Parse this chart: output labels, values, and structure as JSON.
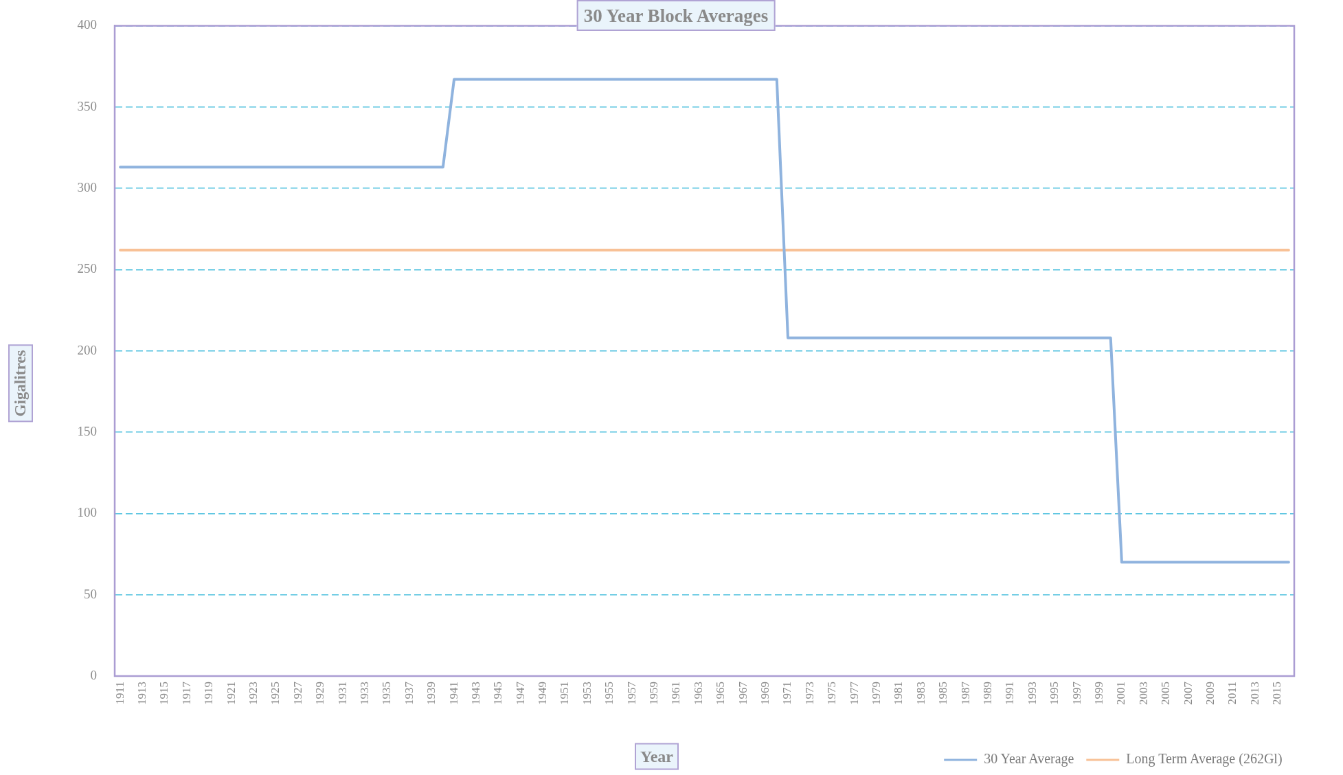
{
  "chart_data": {
    "type": "line",
    "title": "30 Year Block Averages",
    "xlabel": "Year",
    "ylabel": "Gigalitres",
    "categories": [
      "1911",
      null,
      "1913",
      null,
      "1915",
      null,
      "1917",
      null,
      "1919",
      null,
      "1921",
      null,
      "1923",
      null,
      "1925",
      null,
      "1927",
      null,
      "1929",
      null,
      "1931",
      null,
      "1933",
      null,
      "1935",
      null,
      "1937",
      null,
      "1939",
      null,
      "1941",
      null,
      "1943",
      null,
      "1945",
      null,
      "1947",
      null,
      "1949",
      null,
      "1951",
      null,
      "1953",
      null,
      "1955",
      null,
      "1957",
      null,
      "1959",
      null,
      "1961",
      null,
      "1963",
      null,
      "1965",
      null,
      "1967",
      null,
      "1969",
      null,
      "1971",
      null,
      "1973",
      null,
      "1975",
      null,
      "1977",
      null,
      "1979",
      null,
      "1981",
      null,
      "1983",
      null,
      "1985",
      null,
      "1987",
      null,
      "1989",
      null,
      "1991",
      null,
      "1993",
      null,
      "1995",
      null,
      "1997",
      null,
      "1999",
      null,
      "2001",
      null,
      "2003",
      null,
      "2005",
      null,
      "2007",
      null,
      "2009",
      null,
      "2011",
      null,
      "2013",
      null,
      "2015",
      null
    ],
    "series": [
      {
        "name": "30 Year Average",
        "color": "#8fb3de",
        "values": [
          313,
          313,
          313,
          313,
          313,
          313,
          313,
          313,
          313,
          313,
          313,
          313,
          313,
          313,
          313,
          313,
          313,
          313,
          313,
          313,
          313,
          313,
          313,
          313,
          313,
          313,
          313,
          313,
          313,
          313,
          367,
          367,
          367,
          367,
          367,
          367,
          367,
          367,
          367,
          367,
          367,
          367,
          367,
          367,
          367,
          367,
          367,
          367,
          367,
          367,
          367,
          367,
          367,
          367,
          367,
          367,
          367,
          367,
          367,
          367,
          208,
          208,
          208,
          208,
          208,
          208,
          208,
          208,
          208,
          208,
          208,
          208,
          208,
          208,
          208,
          208,
          208,
          208,
          208,
          208,
          208,
          208,
          208,
          208,
          208,
          208,
          208,
          208,
          208,
          208,
          70,
          70,
          70,
          70,
          70,
          70,
          70,
          70,
          70,
          70,
          70,
          70,
          70,
          70,
          70,
          70
        ]
      },
      {
        "name": "Long Term Average (262Gl)",
        "color": "#f8c196",
        "values": [
          262,
          262,
          262,
          262,
          262,
          262,
          262,
          262,
          262,
          262,
          262,
          262,
          262,
          262,
          262,
          262,
          262,
          262,
          262,
          262,
          262,
          262,
          262,
          262,
          262,
          262,
          262,
          262,
          262,
          262,
          262,
          262,
          262,
          262,
          262,
          262,
          262,
          262,
          262,
          262,
          262,
          262,
          262,
          262,
          262,
          262,
          262,
          262,
          262,
          262,
          262,
          262,
          262,
          262,
          262,
          262,
          262,
          262,
          262,
          262,
          262,
          262,
          262,
          262,
          262,
          262,
          262,
          262,
          262,
          262,
          262,
          262,
          262,
          262,
          262,
          262,
          262,
          262,
          262,
          262,
          262,
          262,
          262,
          262,
          262,
          262,
          262,
          262,
          262,
          262,
          262,
          262,
          262,
          262,
          262,
          262,
          262,
          262,
          262,
          262,
          262,
          262,
          262,
          262,
          262,
          262
        ]
      }
    ],
    "ylim": [
      0,
      400
    ],
    "yticks": [
      0,
      50,
      100,
      150,
      200,
      250,
      300,
      350,
      400
    ],
    "grid": "y",
    "legend": "bottom right",
    "marker": "none"
  }
}
